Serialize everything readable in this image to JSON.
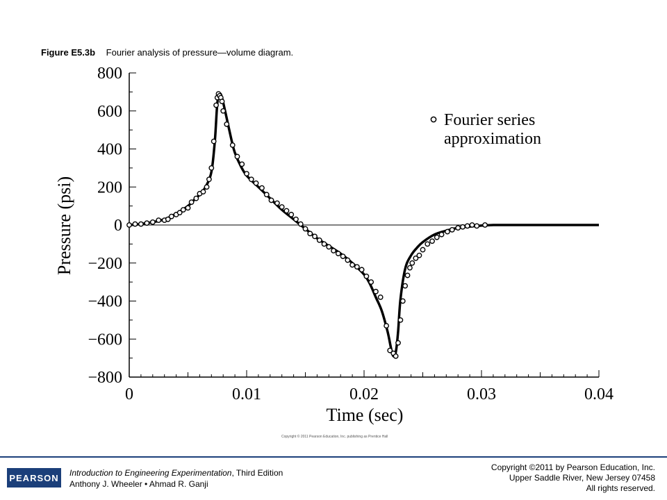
{
  "caption": {
    "label": "Figure E5.3b",
    "text": "Fourier analysis of pressure—volume diagram."
  },
  "chart_data": {
    "type": "line",
    "title": "",
    "xlabel": "Time (sec)",
    "ylabel": "Pressure (psi)",
    "xlim": [
      0,
      0.04
    ],
    "ylim": [
      -800,
      800
    ],
    "xticks": [
      0,
      0.01,
      0.02,
      0.03,
      0.04
    ],
    "xtick_labels": [
      "0",
      "0.01",
      "0.02",
      "0.03",
      "0.04"
    ],
    "yticks": [
      -800,
      -600,
      -400,
      -200,
      0,
      200,
      400,
      600,
      800
    ],
    "ytick_labels": [
      "−800",
      "−600",
      "−400",
      "−200",
      "0",
      "200",
      "400",
      "600",
      "800"
    ],
    "grid": false,
    "zero_line": true,
    "legend": {
      "position": "top-right",
      "lines": [
        "Fourier series",
        "approximation"
      ]
    },
    "series": [
      {
        "style": "solid-line",
        "color": "#000000",
        "x": [
          0,
          0.001,
          0.002,
          0.003,
          0.004,
          0.005,
          0.0055,
          0.006,
          0.0065,
          0.007,
          0.0073,
          0.0075,
          0.0077,
          0.0079,
          0.0082,
          0.0087,
          0.009,
          0.0095,
          0.01,
          0.011,
          0.012,
          0.013,
          0.014,
          0.015,
          0.016,
          0.017,
          0.018,
          0.019,
          0.02,
          0.0205,
          0.021,
          0.0215,
          0.022,
          0.0223,
          0.0225,
          0.0227,
          0.0229,
          0.0231,
          0.0235,
          0.024,
          0.0245,
          0.025,
          0.026,
          0.027,
          0.028,
          0.029,
          0.03,
          0.031,
          0.032,
          0.035,
          0.04
        ],
        "y": [
          0,
          5,
          15,
          30,
          60,
          100,
          130,
          160,
          200,
          280,
          450,
          640,
          690,
          670,
          590,
          450,
          380,
          310,
          260,
          200,
          140,
          80,
          30,
          -20,
          -70,
          -110,
          -150,
          -200,
          -260,
          -310,
          -380,
          -450,
          -560,
          -650,
          -690,
          -670,
          -560,
          -390,
          -230,
          -160,
          -120,
          -90,
          -50,
          -30,
          -15,
          -8,
          -3,
          0,
          0,
          0,
          0
        ]
      },
      {
        "name": "Fourier series approximation",
        "style": "open-circles",
        "color": "#000000",
        "x": [
          0,
          0.0005,
          0.001,
          0.0015,
          0.002,
          0.0025,
          0.003,
          0.0033,
          0.0036,
          0.004,
          0.0043,
          0.0046,
          0.005,
          0.0053,
          0.0057,
          0.006,
          0.0063,
          0.0066,
          0.0068,
          0.007,
          0.0072,
          0.0074,
          0.0075,
          0.0076,
          0.0077,
          0.0078,
          0.0079,
          0.008,
          0.0083,
          0.0088,
          0.0092,
          0.0096,
          0.01,
          0.0104,
          0.0108,
          0.0113,
          0.0117,
          0.0121,
          0.0126,
          0.013,
          0.0134,
          0.0138,
          0.0142,
          0.0146,
          0.015,
          0.0154,
          0.0158,
          0.0162,
          0.0166,
          0.017,
          0.0174,
          0.0178,
          0.0182,
          0.0186,
          0.019,
          0.0194,
          0.0198,
          0.0202,
          0.0206,
          0.021,
          0.0214,
          0.0219,
          0.0222,
          0.0225,
          0.0227,
          0.0229,
          0.0231,
          0.0233,
          0.0235,
          0.0237,
          0.0239,
          0.0241,
          0.0244,
          0.0247,
          0.025,
          0.0254,
          0.0258,
          0.0262,
          0.0266,
          0.0271,
          0.0275,
          0.028,
          0.0284,
          0.0288,
          0.0292,
          0.0296,
          0.0303
        ],
        "y": [
          0,
          5,
          5,
          10,
          15,
          25,
          25,
          30,
          45,
          55,
          65,
          80,
          90,
          120,
          140,
          165,
          175,
          200,
          240,
          300,
          440,
          630,
          670,
          690,
          680,
          670,
          650,
          600,
          530,
          420,
          360,
          320,
          270,
          240,
          220,
          195,
          160,
          130,
          115,
          95,
          75,
          55,
          30,
          5,
          -20,
          -45,
          -60,
          -80,
          -100,
          -115,
          -135,
          -150,
          -165,
          -185,
          -210,
          -220,
          -235,
          -270,
          -300,
          -350,
          -380,
          -530,
          -660,
          -675,
          -690,
          -620,
          -500,
          -400,
          -320,
          -265,
          -225,
          -200,
          -175,
          -160,
          -130,
          -100,
          -85,
          -65,
          -50,
          -35,
          -25,
          -15,
          -10,
          -5,
          0,
          -5,
          0
        ]
      }
    ]
  },
  "small_copyright": "Copyright © 2011 Pearson Education, Inc. publishing as Prentice Hall",
  "footer": {
    "logo_text": "PEARSON",
    "book_title": "Introduction to Engineering Experimentation",
    "book_edition": ", Third Edition",
    "authors": "Anthony J. Wheeler • Ahmad R. Ganji",
    "copyright_line1": "Copyright ©2011 by Pearson Education, Inc.",
    "copyright_line2": "Upper Saddle River, New Jersey 07458",
    "copyright_line3": "All rights reserved."
  }
}
